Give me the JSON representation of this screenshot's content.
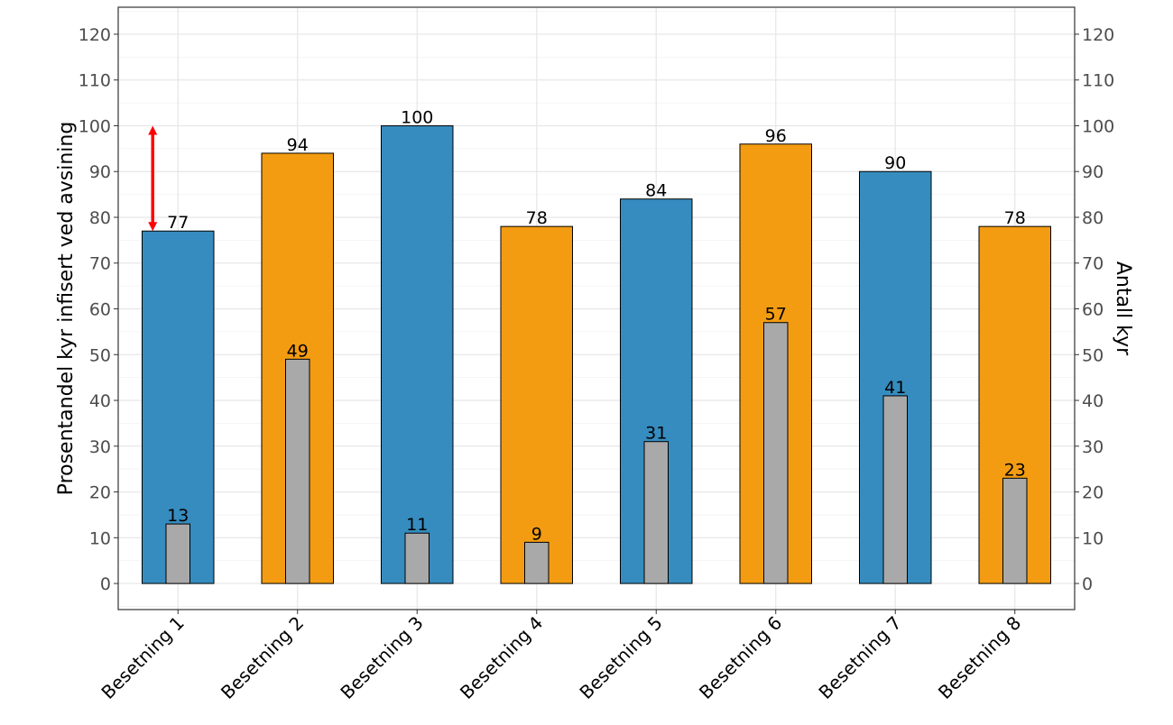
{
  "chart_data": {
    "type": "bar",
    "categories": [
      "Besetning 1",
      "Besetning 2",
      "Besetning 3",
      "Besetning 4",
      "Besetning 5",
      "Besetning 6",
      "Besetning 7",
      "Besetning 8"
    ],
    "series": [
      {
        "name": "Prosentandel kyr infisert ved avsining",
        "values": [
          77,
          94,
          100,
          78,
          84,
          96,
          90,
          78
        ],
        "colors": [
          "#368cbf",
          "#f39c12",
          "#368cbf",
          "#f39c12",
          "#368cbf",
          "#f39c12",
          "#368cbf",
          "#f39c12"
        ]
      },
      {
        "name": "Antall kyr",
        "values": [
          13,
          49,
          11,
          9,
          31,
          57,
          41,
          23
        ],
        "colors": [
          "#a9a9a9"
        ]
      }
    ],
    "ylabel": "Prosentandel kyr infisert ved avsining",
    "ylabel_right": "Antall kyr",
    "xlabel": "",
    "ylim": [
      -5.7,
      125.9
    ],
    "yticks": [
      0,
      10,
      20,
      30,
      40,
      50,
      60,
      70,
      80,
      90,
      100,
      110,
      120
    ],
    "grid": true,
    "annotation": {
      "type": "double-arrow",
      "category": "Besetning 1",
      "from": 77,
      "to": 100,
      "color": "#ff0000"
    }
  }
}
